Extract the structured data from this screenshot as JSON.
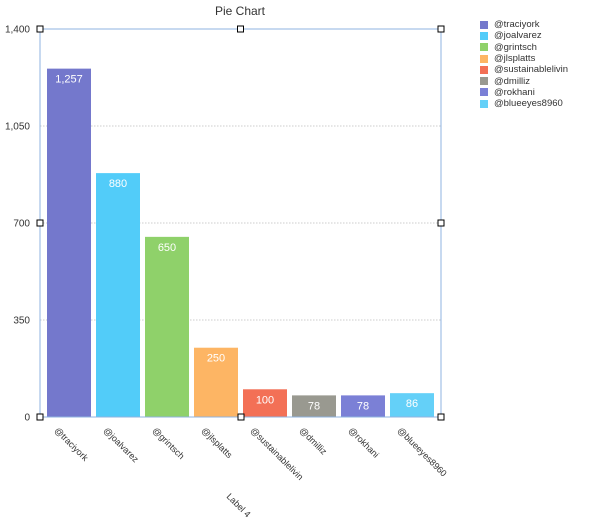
{
  "chart_data": {
    "type": "bar",
    "title": "Pie Chart",
    "xlabel": "Label 4",
    "ylabel": "",
    "categories": [
      "@traciyork",
      "@joalvarez",
      "@grintsch",
      "@jlsplatts",
      "@sustainablelivin",
      "@dmilliz",
      "@rokhani",
      "@blueeyes8960"
    ],
    "values": [
      1257,
      880,
      650,
      250,
      100,
      78,
      78,
      86
    ],
    "value_labels": [
      "1,257",
      "880",
      "650",
      "250",
      "100",
      "78",
      "78",
      "86"
    ],
    "colors": [
      "#7478cc",
      "#52ccf9",
      "#8fd16a",
      "#fdb564",
      "#f37056",
      "#999990",
      "#7b80d6",
      "#64d0f8"
    ],
    "ylim": [
      0,
      1400
    ],
    "y_ticks": [
      0,
      350,
      700,
      1050,
      1400
    ],
    "y_tick_labels": [
      "0",
      "350",
      "700",
      "1,050",
      "1,400"
    ],
    "grid": true,
    "legend_position": "top-right"
  }
}
